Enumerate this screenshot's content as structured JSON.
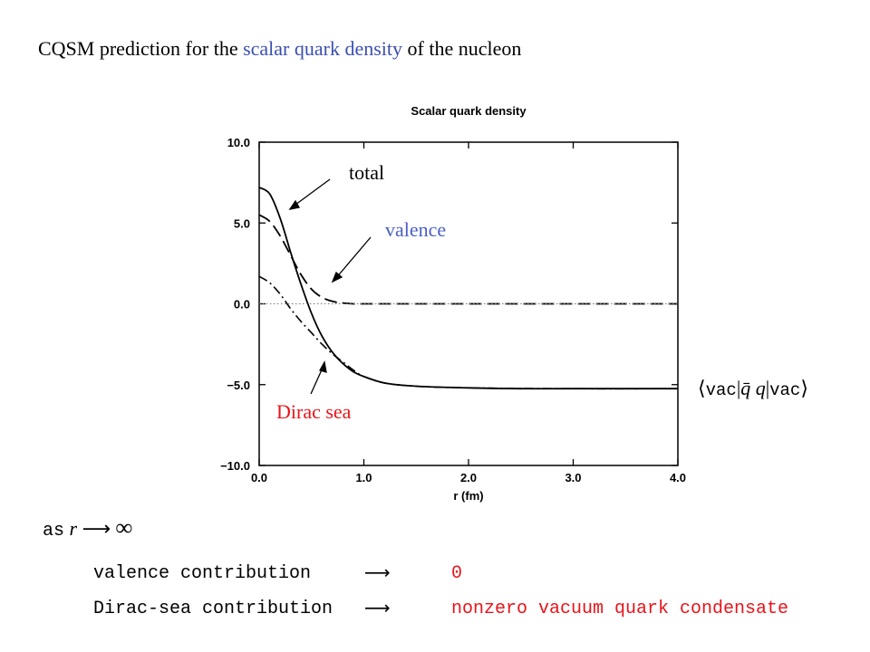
{
  "title": {
    "prefix": "CQSM prediction for the ",
    "highlight": "scalar quark density",
    "suffix": " of the nucleon"
  },
  "annotations": {
    "total": "total",
    "valence": "valence",
    "dirac_sea": "Dirac sea",
    "vac_left": "⟨",
    "vac_word1": "vac",
    "vac_bar": "|",
    "vac_qbar": "q̄",
    "vac_q": " q",
    "vac_bar2": "|",
    "vac_word2": "vac",
    "vac_right": "⟩"
  },
  "bottom": {
    "as_word": "as",
    "r": "r",
    "arrow": "⟶",
    "inf": "∞",
    "row1_label": "valence contribution",
    "row1_arrow": "⟶",
    "row1_value": "0",
    "row2_label": "Dirac-sea contribution",
    "row2_arrow": "⟶",
    "row2_value": "nonzero vacuum quark condensate"
  },
  "colors": {
    "highlight_blue": "#3a4fb0",
    "valence_blue": "#4a5fc4",
    "red": "#e8141a"
  },
  "chart_data": {
    "type": "line",
    "title": "Scalar quark density",
    "xlabel": "r (fm)",
    "ylabel": "",
    "xlim": [
      0,
      4
    ],
    "ylim": [
      -10,
      10
    ],
    "x_ticks": [
      "0.0",
      "1.0",
      "2.0",
      "3.0",
      "4.0"
    ],
    "y_ticks": [
      "10.0",
      "5.0",
      "0.0",
      "−5.0",
      "−10.0"
    ],
    "x_tick_values": [
      0,
      1,
      2,
      3,
      4
    ],
    "y_tick_values": [
      10,
      5,
      0,
      -5,
      -10
    ],
    "series": [
      {
        "style": "solid",
        "x": [
          0,
          0.1,
          0.2,
          0.3,
          0.4,
          0.5,
          0.6,
          0.7,
          0.8,
          0.9,
          1.0,
          1.2,
          1.5,
          2.0,
          2.5,
          3.0,
          4.0
        ],
        "values": [
          7.2,
          6.8,
          5.3,
          3.2,
          1.2,
          -0.6,
          -2.0,
          -3.0,
          -3.7,
          -4.2,
          -4.5,
          -4.9,
          -5.1,
          -5.2,
          -5.25,
          -5.25,
          -5.25
        ]
      },
      {
        "style": "dashed",
        "x": [
          0,
          0.1,
          0.2,
          0.3,
          0.4,
          0.5,
          0.6,
          0.7,
          0.8,
          0.9,
          1.0,
          1.5,
          2.0,
          4.0
        ],
        "values": [
          5.5,
          5.1,
          4.2,
          3.0,
          1.8,
          0.9,
          0.4,
          0.15,
          0.05,
          0.0,
          0.0,
          0.0,
          0.0,
          0.0
        ]
      },
      {
        "style": "dashdot",
        "x": [
          0,
          0.1,
          0.2,
          0.3,
          0.4,
          0.5,
          0.6,
          0.7,
          0.8,
          0.9,
          1.0,
          1.2,
          1.5,
          2.0,
          3.0,
          4.0
        ],
        "values": [
          1.7,
          1.3,
          0.6,
          -0.3,
          -1.1,
          -1.8,
          -2.5,
          -3.1,
          -3.6,
          -4.1,
          -4.5,
          -4.9,
          -5.1,
          -5.2,
          -5.25,
          -5.25
        ]
      },
      {
        "style": "dotted",
        "x": [
          0,
          4
        ],
        "values": [
          0,
          0
        ]
      }
    ]
  }
}
